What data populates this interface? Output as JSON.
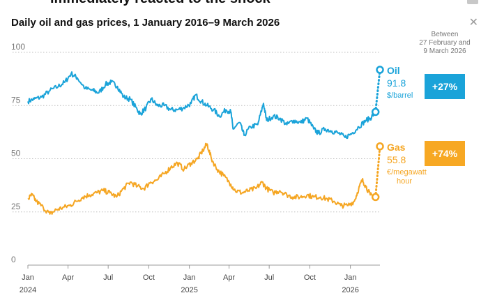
{
  "heading": "immediately reacted to the shock",
  "colors": {
    "oil": "#1aa3d9",
    "gas": "#f5a623",
    "grid": "#bdbdbd",
    "axis": "#777777"
  },
  "chart_data": {
    "type": "line",
    "title": "Daily oil and gas prices, 1 January 2016–9 March 2026",
    "ylim": [
      0,
      100
    ],
    "yticks": [
      0,
      25,
      50,
      75,
      100
    ],
    "grid": true,
    "xlim": [
      "2024-01-01",
      "2026-03-09"
    ],
    "xticks": [
      {
        "date": "2024-01-01",
        "label": "Jan",
        "year": "2024"
      },
      {
        "date": "2024-04-01",
        "label": "Apr",
        "year": ""
      },
      {
        "date": "2024-07-01",
        "label": "Jul",
        "year": ""
      },
      {
        "date": "2024-10-01",
        "label": "Oct",
        "year": ""
      },
      {
        "date": "2025-01-01",
        "label": "Jan",
        "year": "2025"
      },
      {
        "date": "2025-04-01",
        "label": "Apr",
        "year": ""
      },
      {
        "date": "2025-07-01",
        "label": "Jul",
        "year": ""
      },
      {
        "date": "2025-10-01",
        "label": "Oct",
        "year": ""
      },
      {
        "date": "2026-01-01",
        "label": "Jan",
        "year": "2026"
      }
    ],
    "period_note": [
      "Between",
      "27 February and",
      "9 March 2026"
    ],
    "series": [
      {
        "name": "Oil",
        "value": "91.8",
        "unit": [
          "$/barrel"
        ],
        "change": "+27%",
        "points": [
          [
            "2024-01-01",
            77
          ],
          [
            "2024-01-15",
            78
          ],
          [
            "2024-02-01",
            79
          ],
          [
            "2024-02-20",
            82
          ],
          [
            "2024-03-10",
            84
          ],
          [
            "2024-03-25",
            86
          ],
          [
            "2024-04-08",
            90
          ],
          [
            "2024-04-22",
            88
          ],
          [
            "2024-05-10",
            83
          ],
          [
            "2024-05-28",
            82
          ],
          [
            "2024-06-10",
            81
          ],
          [
            "2024-06-25",
            85
          ],
          [
            "2024-07-08",
            86
          ],
          [
            "2024-07-22",
            84
          ],
          [
            "2024-08-05",
            79
          ],
          [
            "2024-08-20",
            78
          ],
          [
            "2024-09-05",
            73
          ],
          [
            "2024-09-12",
            71
          ],
          [
            "2024-09-25",
            74
          ],
          [
            "2024-10-07",
            78
          ],
          [
            "2024-10-20",
            75
          ],
          [
            "2024-11-05",
            75
          ],
          [
            "2024-11-20",
            73
          ],
          [
            "2024-12-05",
            73
          ],
          [
            "2024-12-20",
            74
          ],
          [
            "2025-01-05",
            76
          ],
          [
            "2025-01-15",
            80
          ],
          [
            "2025-01-28",
            77
          ],
          [
            "2025-02-10",
            75
          ],
          [
            "2025-02-25",
            73
          ],
          [
            "2025-03-10",
            70
          ],
          [
            "2025-03-25",
            73
          ],
          [
            "2025-04-05",
            72
          ],
          [
            "2025-04-10",
            64
          ],
          [
            "2025-04-25",
            67
          ],
          [
            "2025-05-05",
            61
          ],
          [
            "2025-05-20",
            65
          ],
          [
            "2025-06-05",
            66
          ],
          [
            "2025-06-18",
            76
          ],
          [
            "2025-06-25",
            68
          ],
          [
            "2025-07-10",
            70
          ],
          [
            "2025-07-25",
            69
          ],
          [
            "2025-08-10",
            66
          ],
          [
            "2025-08-25",
            68
          ],
          [
            "2025-09-10",
            67
          ],
          [
            "2025-09-25",
            69
          ],
          [
            "2025-10-10",
            64
          ],
          [
            "2025-10-20",
            62
          ],
          [
            "2025-11-05",
            64
          ],
          [
            "2025-11-20",
            63
          ],
          [
            "2025-12-05",
            62
          ],
          [
            "2025-12-20",
            60
          ],
          [
            "2026-01-05",
            62
          ],
          [
            "2026-01-20",
            65
          ],
          [
            "2026-02-05",
            68
          ],
          [
            "2026-02-15",
            69
          ],
          [
            "2026-02-27",
            72
          ]
        ],
        "end": [
          "2026-03-09",
          91.8
        ]
      },
      {
        "name": "Gas",
        "value": "55.8",
        "unit": [
          "€/megawatt",
          "hour"
        ],
        "change": "+74%",
        "points": [
          [
            "2024-01-01",
            31
          ],
          [
            "2024-01-10",
            33
          ],
          [
            "2024-01-20",
            30
          ],
          [
            "2024-02-05",
            27
          ],
          [
            "2024-02-20",
            24
          ],
          [
            "2024-03-05",
            26
          ],
          [
            "2024-03-20",
            27
          ],
          [
            "2024-04-05",
            28
          ],
          [
            "2024-04-20",
            30
          ],
          [
            "2024-05-05",
            32
          ],
          [
            "2024-05-20",
            33
          ],
          [
            "2024-06-05",
            34
          ],
          [
            "2024-06-20",
            35
          ],
          [
            "2024-07-05",
            34
          ],
          [
            "2024-07-20",
            32
          ],
          [
            "2024-08-05",
            36
          ],
          [
            "2024-08-20",
            39
          ],
          [
            "2024-09-05",
            37
          ],
          [
            "2024-09-20",
            36
          ],
          [
            "2024-10-05",
            39
          ],
          [
            "2024-10-20",
            40
          ],
          [
            "2024-11-05",
            43
          ],
          [
            "2024-11-20",
            46
          ],
          [
            "2024-12-05",
            48
          ],
          [
            "2024-12-20",
            45
          ],
          [
            "2025-01-05",
            48
          ],
          [
            "2025-01-20",
            50
          ],
          [
            "2025-02-01",
            54
          ],
          [
            "2025-02-10",
            57
          ],
          [
            "2025-02-20",
            50
          ],
          [
            "2025-03-05",
            45
          ],
          [
            "2025-03-20",
            42
          ],
          [
            "2025-04-05",
            38
          ],
          [
            "2025-04-15",
            35
          ],
          [
            "2025-05-01",
            34
          ],
          [
            "2025-05-15",
            35
          ],
          [
            "2025-06-01",
            36
          ],
          [
            "2025-06-15",
            39
          ],
          [
            "2025-06-25",
            36
          ],
          [
            "2025-07-10",
            34
          ],
          [
            "2025-07-25",
            35
          ],
          [
            "2025-08-10",
            33
          ],
          [
            "2025-08-25",
            32
          ],
          [
            "2025-09-10",
            32
          ],
          [
            "2025-09-25",
            33
          ],
          [
            "2025-10-10",
            32
          ],
          [
            "2025-10-25",
            32
          ],
          [
            "2025-11-10",
            31
          ],
          [
            "2025-11-25",
            30
          ],
          [
            "2025-12-10",
            28
          ],
          [
            "2025-12-25",
            28
          ],
          [
            "2026-01-10",
            30
          ],
          [
            "2026-01-20",
            36
          ],
          [
            "2026-01-28",
            40
          ],
          [
            "2026-02-05",
            37
          ],
          [
            "2026-02-15",
            33
          ],
          [
            "2026-02-27",
            32
          ]
        ],
        "end": [
          "2026-03-09",
          55.8
        ]
      }
    ]
  }
}
